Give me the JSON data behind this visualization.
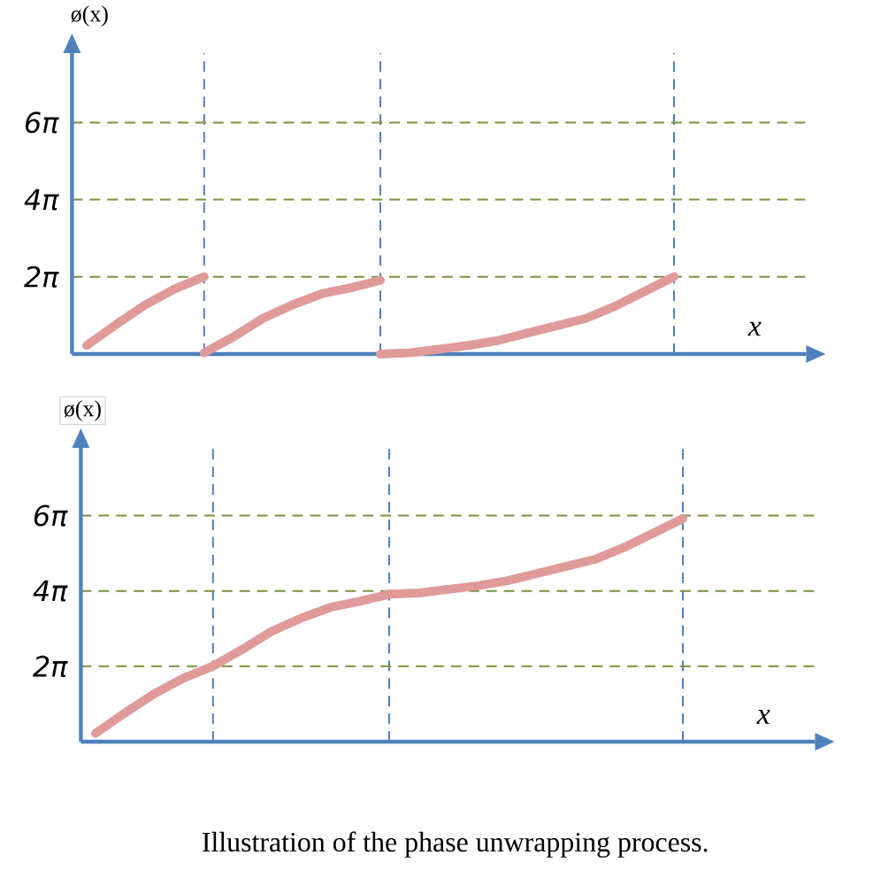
{
  "chart_data": [
    {
      "type": "line",
      "ylabel": "ø(x)",
      "xlabel": "x",
      "categories": [
        null,
        null,
        null,
        null,
        null,
        null,
        null,
        null,
        null,
        null,
        null,
        null,
        null,
        null,
        null,
        null,
        null,
        null,
        null,
        null,
        null,
        null,
        null,
        null,
        null
      ],
      "series": [
        {
          "color": "#e09a9a",
          "values": [
            0.7,
            2.4,
            4.0,
            5.3,
            6.3,
            null,
            null,
            null,
            null,
            null,
            null,
            null,
            null,
            null,
            null,
            null,
            null,
            null,
            null,
            null,
            null,
            null,
            null,
            null,
            null
          ]
        },
        {
          "color": "#e09a9a",
          "values": [
            null,
            null,
            null,
            null,
            0.1,
            1.4,
            2.9,
            4.0,
            4.9,
            5.4,
            6.0,
            null,
            null,
            null,
            null,
            null,
            null,
            null,
            null,
            null,
            null,
            null,
            null,
            null,
            null
          ]
        },
        {
          "color": "#e09a9a",
          "values": [
            null,
            null,
            null,
            null,
            null,
            null,
            null,
            null,
            null,
            null,
            0.0,
            0.1,
            0.4,
            0.7,
            1.1,
            1.7,
            2.3,
            2.9,
            3.9,
            5.1,
            6.3,
            null,
            null,
            null,
            null
          ]
        }
      ],
      "ylim": [
        0,
        24.5
      ],
      "yticks": [
        {
          "value": 6.283,
          "label": "2π"
        },
        {
          "value": 12.566,
          "label": "4π"
        },
        {
          "value": 18.85,
          "label": "6π"
        }
      ],
      "grid": true
    },
    {
      "type": "line",
      "ylabel": "ø(x)",
      "xlabel": "x",
      "categories": [
        null,
        null,
        null,
        null,
        null,
        null,
        null,
        null,
        null,
        null,
        null,
        null,
        null,
        null,
        null,
        null,
        null,
        null,
        null,
        null,
        null,
        null,
        null,
        null,
        null
      ],
      "series": [
        {
          "color": "#e09a9a",
          "values": [
            0.7,
            2.4,
            4.0,
            5.3,
            6.3,
            7.7,
            9.2,
            10.3,
            11.2,
            11.7,
            12.3,
            12.4,
            12.7,
            13.0,
            13.4,
            14.0,
            14.6,
            15.2,
            16.2,
            17.4,
            18.6,
            null,
            null,
            null,
            null
          ]
        }
      ],
      "ylim": [
        0,
        24.5
      ],
      "yticks": [
        {
          "value": 6.283,
          "label": "2π"
        },
        {
          "value": 12.566,
          "label": "4π"
        },
        {
          "value": 18.85,
          "label": "6π"
        }
      ],
      "grid": true,
      "annotations": [
        "Illustration of the phase unwrapping process."
      ]
    }
  ]
}
